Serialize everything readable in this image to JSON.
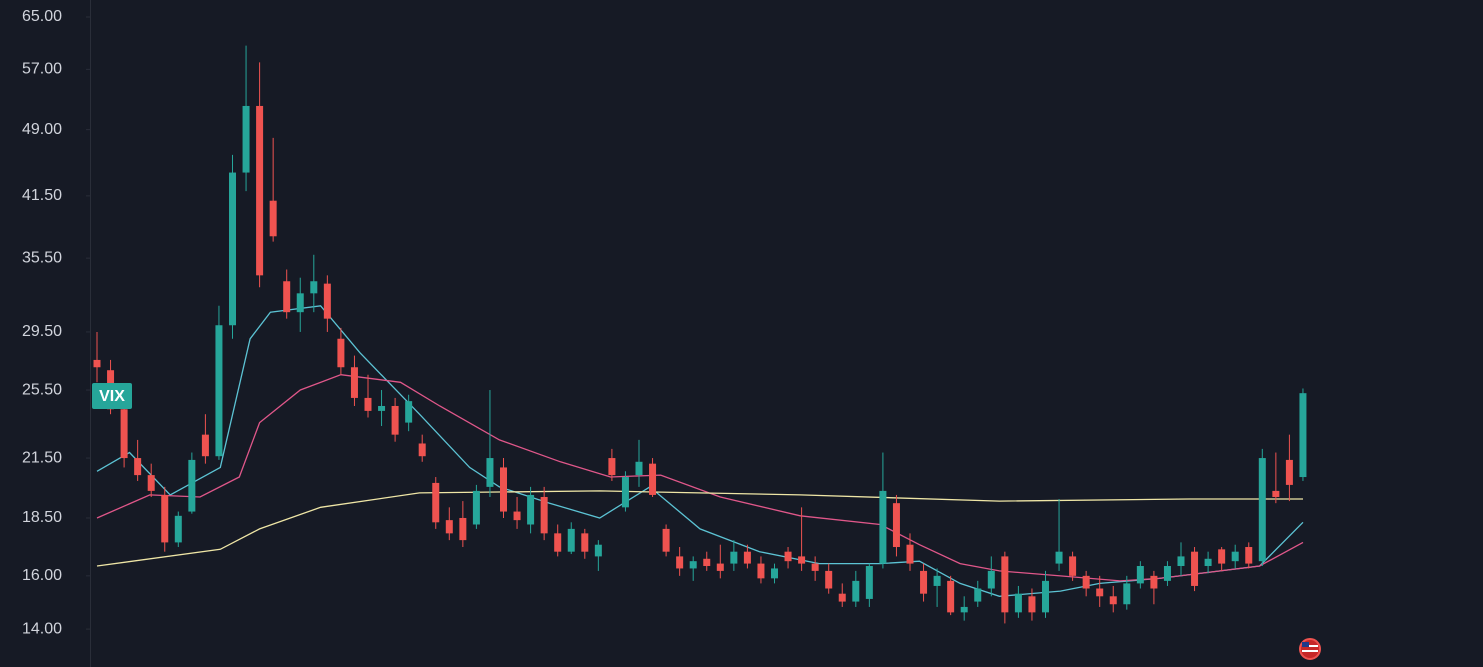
{
  "chart_data": {
    "type": "candlestick",
    "label": "VIX",
    "log_scale": true,
    "ylim": [
      12.73,
      67.83
    ],
    "yticks": [
      {
        "value": 65,
        "label": "65.00"
      },
      {
        "value": 57,
        "label": "57.00"
      },
      {
        "value": 49,
        "label": "49.00"
      },
      {
        "value": 41.5,
        "label": "41.50"
      },
      {
        "value": 35.5,
        "label": "35.50"
      },
      {
        "value": 29.5,
        "label": "29.50"
      },
      {
        "value": 25.5,
        "label": "25.50"
      },
      {
        "value": 21.5,
        "label": "21.50"
      },
      {
        "value": 18.5,
        "label": "18.50"
      },
      {
        "value": 16,
        "label": "16.00"
      },
      {
        "value": 14,
        "label": "14.00"
      }
    ],
    "up_color": "#26a69a",
    "down_color": "#ef5350",
    "candles": {
      "open": [
        27.5,
        26.8,
        24.3,
        21.5,
        20.6,
        19.6,
        17.4,
        18.8,
        22.8,
        21.6,
        30,
        44,
        52,
        41,
        33.5,
        31,
        32.5,
        33.3,
        29,
        27,
        25,
        24.2,
        24.5,
        23.5,
        22.3,
        20.2,
        18.4,
        18.5,
        18.2,
        20.0,
        21.0,
        18.8,
        18.2,
        19.5,
        17.8,
        17.0,
        17.8,
        16.8,
        21.5,
        19.0,
        20.6,
        21.2,
        18.0,
        16.8,
        16.3,
        16.7,
        16.5,
        16.5,
        17.0,
        16.5,
        15.9,
        17.0,
        16.8,
        16.5,
        16.2,
        15.3,
        15.0,
        15.1,
        16.5,
        19.2,
        17.3,
        16.2,
        15.6,
        15.8,
        14.6,
        15.0,
        15.5,
        16.8,
        14.6,
        15.2,
        14.6,
        16.5,
        16.8,
        16.0,
        15.5,
        15.2,
        14.9,
        15.7,
        16.0,
        15.8,
        16.4,
        17.0,
        16.4,
        17.1,
        16.6,
        17.2,
        16.6,
        19.8,
        21.4,
        20.5
      ],
      "high": [
        29.5,
        27.5,
        25.0,
        22.5,
        21.2,
        20.0,
        18.8,
        21.8,
        24.0,
        31.5,
        46,
        60.5,
        58,
        48,
        34.5,
        33.8,
        35.8,
        34,
        29.8,
        27.8,
        26.5,
        25.5,
        25,
        25.2,
        22.8,
        20.5,
        19,
        19.3,
        20.1,
        25.5,
        21.5,
        19.5,
        20.0,
        20.0,
        18.2,
        18.3,
        18.0,
        17.5,
        22,
        20.8,
        22.5,
        21.5,
        18.2,
        17.2,
        16.8,
        17.0,
        17.3,
        17.5,
        17.3,
        16.8,
        16.5,
        17.2,
        19.0,
        16.8,
        16.5,
        15.7,
        16.2,
        16.5,
        21.8,
        19.6,
        17.8,
        16.5,
        16.3,
        16.0,
        15.2,
        15.8,
        16.8,
        17.0,
        15.6,
        15.5,
        16.2,
        19.4,
        17.0,
        16.2,
        16.0,
        15.6,
        16.0,
        16.6,
        16.2,
        16.6,
        17.4,
        17.2,
        17.0,
        17.2,
        17.3,
        17.4,
        22.0,
        21.8,
        22.8,
        25.6
      ],
      "low": [
        26,
        24.0,
        21.0,
        20.3,
        19.5,
        17.0,
        17.2,
        18.7,
        21.2,
        21.4,
        29,
        42,
        33,
        37,
        30.5,
        29.5,
        31,
        29.5,
        26.5,
        24.5,
        23.8,
        23.3,
        22.4,
        23,
        21.3,
        18.0,
        17.5,
        17.2,
        18,
        19.5,
        18.5,
        18.0,
        17.8,
        17.5,
        16.8,
        16.9,
        16.7,
        16.2,
        20.3,
        18.8,
        20.0,
        19.5,
        16.8,
        16.0,
        15.8,
        16.2,
        15.9,
        16.2,
        16.3,
        15.7,
        15.7,
        16.3,
        16.2,
        15.8,
        15.3,
        14.8,
        14.8,
        14.8,
        16.3,
        16.8,
        16.2,
        15.0,
        14.8,
        14.5,
        14.3,
        14.8,
        15.2,
        14.2,
        14.4,
        14.3,
        14.4,
        16.2,
        15.8,
        15.2,
        14.8,
        14.6,
        14.7,
        15.5,
        14.9,
        15.6,
        16.0,
        15.4,
        16.1,
        16.2,
        16.3,
        16.3,
        16.4,
        19.2,
        19.3,
        20.3
      ],
      "close": [
        27.0,
        24.3,
        21.5,
        20.6,
        19.8,
        17.4,
        18.6,
        21.4,
        21.6,
        30.0,
        44,
        52,
        34,
        37.5,
        31,
        32.5,
        33.5,
        30.5,
        27,
        25,
        24.2,
        24.5,
        22.8,
        24.8,
        21.6,
        18.3,
        17.8,
        17.5,
        19.8,
        21.5,
        18.8,
        18.4,
        19.6,
        17.8,
        17.0,
        18.0,
        17.0,
        17.3,
        20.6,
        20.5,
        21.3,
        19.6,
        17.0,
        16.3,
        16.6,
        16.4,
        16.2,
        17.0,
        16.5,
        15.9,
        16.3,
        16.6,
        16.5,
        16.2,
        15.5,
        15.0,
        15.8,
        16.4,
        19.8,
        17.2,
        16.5,
        15.3,
        16.0,
        14.6,
        14.8,
        15.5,
        16.2,
        14.6,
        15.3,
        14.6,
        15.8,
        17.0,
        16.0,
        15.5,
        15.2,
        14.9,
        15.7,
        16.4,
        15.5,
        16.4,
        16.8,
        15.6,
        16.7,
        16.5,
        17.0,
        16.5,
        21.5,
        19.5,
        20.1,
        25.3
      ]
    },
    "series": [
      {
        "color": "#5cc3d4",
        "x": [
          0,
          2.4,
          5.4,
          9.1,
          11.3,
          12.8,
          16.5,
          19.4,
          23.8,
          27.5,
          29.7,
          33.4,
          37.1,
          40.8,
          44.5,
          48.9,
          53.3,
          57.8,
          60.7,
          63.7,
          66.6,
          71.1,
          74,
          78.4,
          82.9,
          85.8,
          89
        ],
        "values": [
          20.8,
          21.8,
          19.6,
          21,
          29,
          31,
          31.5,
          28,
          24,
          21,
          20,
          19.2,
          18.5,
          20,
          18,
          17,
          16.5,
          16.5,
          16.6,
          15.7,
          15.2,
          15.4,
          15.7,
          15.9,
          16.2,
          16.4,
          18.3
        ]
      },
      {
        "color": "#e0578a",
        "x": [
          0,
          3.9,
          7.6,
          10.5,
          12,
          15,
          18,
          22.4,
          25.3,
          29.7,
          34.2,
          37.9,
          41.6,
          46,
          51.9,
          57.8,
          60.7,
          63.7,
          66.6,
          71.1,
          75.5,
          78.4,
          82.9,
          85.8,
          89
        ],
        "values": [
          18.5,
          19.6,
          19.5,
          20.5,
          23.5,
          25.5,
          26.5,
          26,
          24.5,
          22.5,
          21.3,
          20.5,
          20.6,
          19.5,
          18.6,
          18.2,
          17.3,
          16.5,
          16.2,
          16,
          15.8,
          15.9,
          16.2,
          16.4,
          17.4
        ]
      },
      {
        "color": "#efe6a6",
        "x": [
          0,
          9.1,
          12,
          16.5,
          23.8,
          37.1,
          51.9,
          66.6,
          80.6,
          89
        ],
        "values": [
          16.4,
          17.1,
          18,
          19,
          19.7,
          19.8,
          19.6,
          19.3,
          19.4,
          19.4
        ]
      }
    ]
  }
}
